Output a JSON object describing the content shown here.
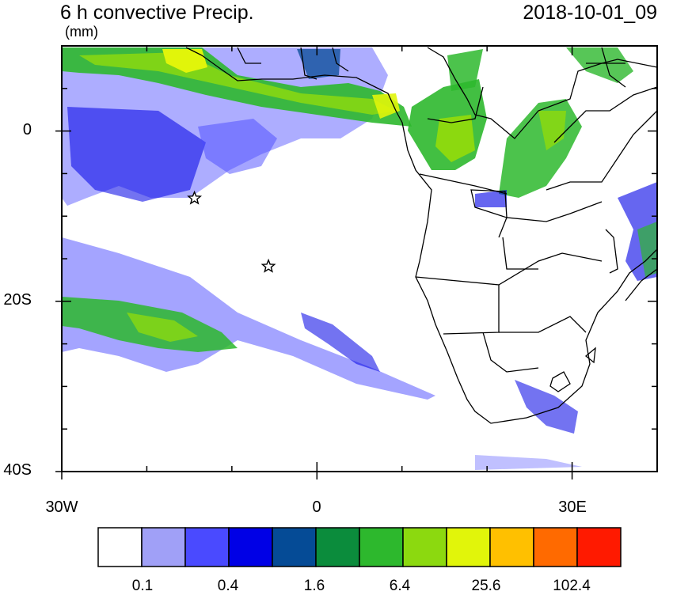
{
  "header": {
    "title": "6 h convective Precip.",
    "valid_time": "2018-10-01_09",
    "units": "(mm)"
  },
  "axes": {
    "lat_labels": [
      "0",
      "20S",
      "40S"
    ],
    "lon_labels": [
      "30W",
      "0",
      "30E"
    ],
    "lon_range": [
      -30,
      40
    ],
    "lat_range": [
      -40,
      10
    ]
  },
  "colorbar": {
    "colors": [
      "#ffffff",
      "#a0a0f7",
      "#4a4aff",
      "#0000e6",
      "#054b96",
      "#0b8c3c",
      "#2db82d",
      "#8cd90f",
      "#e1f50a",
      "#ffc000",
      "#ff6a00",
      "#ff1a00"
    ],
    "labels": [
      "0.1",
      "0.4",
      "1.6",
      "6.4",
      "25.6",
      "102.4"
    ]
  },
  "markers": {
    "icon": "star-icon",
    "locations": [
      {
        "lon": -14.4,
        "lat": -7.9
      },
      {
        "lon": -5.7,
        "lat": -15.9
      }
    ]
  }
}
